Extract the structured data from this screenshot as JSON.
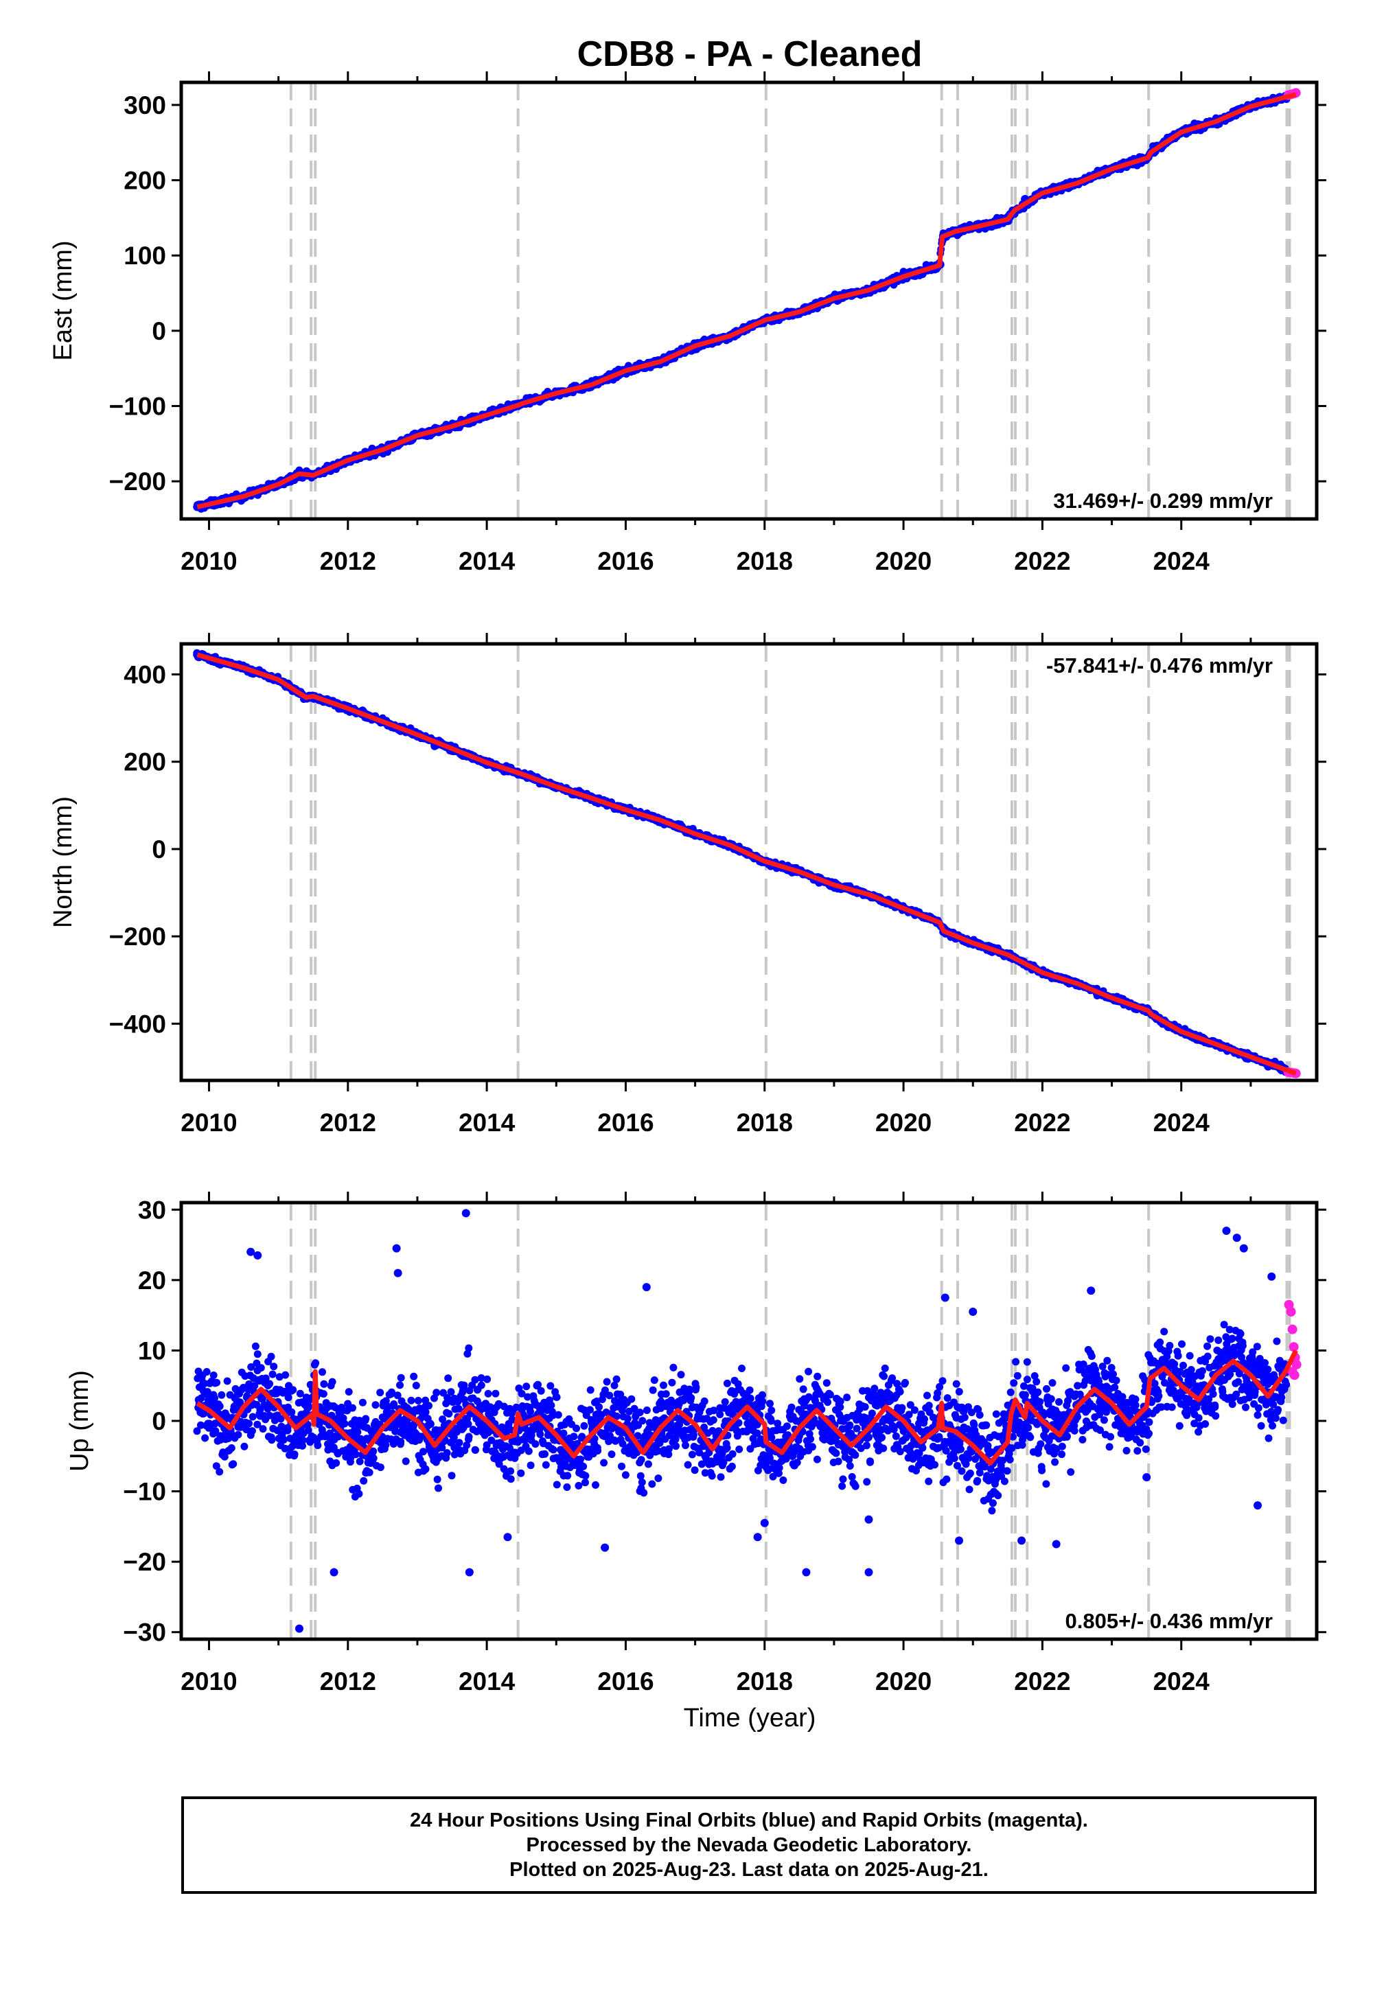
{
  "title": "CDB8  - PA - Cleaned",
  "x_tick_labels": [
    "2010",
    "2012",
    "2014",
    "2016",
    "2018",
    "2020",
    "2022",
    "2024"
  ],
  "xlabel": "Time (year)",
  "colors": {
    "final": "#0000ff",
    "rapid": "#ff22dd",
    "model": "#ff1a1a",
    "steps": "#c8c8c8"
  },
  "footer": {
    "line1": "24 Hour Positions Using Final Orbits (blue) and Rapid Orbits (magenta).",
    "line2": "Processed by the Nevada Geodetic Laboratory.",
    "line3": "Plotted on 2025-Aug-23. Last data on 2025-Aug-21."
  },
  "chart_data": [
    {
      "type": "scatter",
      "panel": "east",
      "ylabel": "East (mm)",
      "xlim": [
        2009.6,
        2025.95
      ],
      "ylim": [
        -250,
        330
      ],
      "y_ticks": [
        -200,
        -100,
        0,
        100,
        200,
        300
      ],
      "y_tick_labels": [
        "−200",
        "−100",
        "0",
        "100",
        "200",
        "300"
      ],
      "rate_label": "31.469+/- 0.299 mm/yr",
      "rate_position": "bottom-right",
      "step_lines": [
        2011.18,
        2011.47,
        2011.53,
        2014.45,
        2018.02,
        2020.55,
        2020.78,
        2021.56,
        2021.61,
        2021.78,
        2023.53,
        2025.52,
        2025.56
      ],
      "series": [
        {
          "name": "Final Orbits",
          "style": "points",
          "color": "#0000ff",
          "x": [
            2009.83,
            2010.0,
            2010.25,
            2010.5,
            2010.75,
            2011.0,
            2011.25,
            2011.5,
            2011.75,
            2012.0,
            2012.25,
            2012.5,
            2012.75,
            2013.0,
            2013.25,
            2013.5,
            2013.75,
            2014.0,
            2014.25,
            2014.45,
            2014.75,
            2015.0,
            2015.25,
            2015.5,
            2015.75,
            2016.0,
            2016.25,
            2016.5,
            2016.75,
            2017.0,
            2017.25,
            2017.5,
            2017.75,
            2018.0,
            2018.25,
            2018.5,
            2018.75,
            2019.0,
            2019.25,
            2019.5,
            2019.75,
            2020.0,
            2020.25,
            2020.53,
            2020.56,
            2020.75,
            2021.0,
            2021.25,
            2021.5,
            2021.6,
            2021.75,
            2022.0,
            2022.25,
            2022.5,
            2022.75,
            2023.0,
            2023.25,
            2023.5,
            2023.55,
            2023.75,
            2024.0,
            2024.25,
            2024.5,
            2024.75,
            2025.0,
            2025.25,
            2025.5
          ],
          "y": [
            -234,
            -230,
            -226,
            -220,
            -212,
            -203,
            -193,
            -191,
            -186,
            -171,
            -161,
            -158,
            -150,
            -138,
            -130,
            -125,
            -123,
            -112,
            -105,
            -100,
            -92,
            -83,
            -76,
            -72,
            -62,
            -52,
            -46,
            -40,
            -31,
            -20,
            -12,
            -6,
            5,
            15,
            20,
            25,
            33,
            43,
            51,
            55,
            61,
            71,
            80,
            88,
            120,
            132,
            137,
            143,
            149,
            158,
            175,
            184,
            192,
            197,
            205,
            214,
            222,
            228,
            235,
            250,
            264,
            271,
            279,
            289,
            298,
            306,
            312
          ]
        },
        {
          "name": "Rapid Orbits",
          "style": "points",
          "color": "#ff22dd",
          "x": [
            2025.54,
            2025.58,
            2025.62,
            2025.65
          ],
          "y": [
            313,
            314,
            315,
            316
          ]
        },
        {
          "name": "Model",
          "style": "line",
          "color": "#ff1a1a",
          "x": [
            2009.83,
            2010.5,
            2011.0,
            2011.3,
            2011.5,
            2012.0,
            2012.5,
            2013.0,
            2013.5,
            2014.0,
            2014.45,
            2014.5,
            2015.0,
            2015.5,
            2016.0,
            2016.5,
            2017.0,
            2017.5,
            2018.0,
            2018.5,
            2019.0,
            2019.5,
            2020.0,
            2020.52,
            2020.56,
            2020.75,
            2021.0,
            2021.5,
            2021.6,
            2022.0,
            2022.5,
            2023.0,
            2023.52,
            2023.56,
            2024.0,
            2024.5,
            2025.0,
            2025.65
          ],
          "y": [
            -234,
            -220,
            -204,
            -190,
            -192,
            -172,
            -158,
            -139,
            -127,
            -112,
            -99,
            -97,
            -83,
            -72,
            -53,
            -41,
            -20,
            -7,
            14,
            25,
            43,
            54,
            72,
            87,
            125,
            132,
            137,
            148,
            160,
            183,
            196,
            215,
            230,
            237,
            264,
            278,
            298,
            314
          ]
        }
      ]
    },
    {
      "type": "scatter",
      "panel": "north",
      "ylabel": "North (mm)",
      "xlim": [
        2009.6,
        2025.95
      ],
      "ylim": [
        -530,
        470
      ],
      "y_ticks": [
        -400,
        -200,
        0,
        200,
        400
      ],
      "y_tick_labels": [
        "−400",
        "−200",
        "0",
        "200",
        "400"
      ],
      "rate_label": "-57.841+/- 0.476 mm/yr",
      "rate_position": "top-right",
      "step_lines": [
        2011.18,
        2011.47,
        2011.53,
        2014.45,
        2018.02,
        2020.55,
        2020.78,
        2021.56,
        2021.61,
        2021.78,
        2023.53,
        2025.52,
        2025.56
      ],
      "series": [
        {
          "name": "Final Orbits",
          "style": "points",
          "color": "#0000ff",
          "x": [
            2009.83,
            2010.0,
            2010.25,
            2010.5,
            2010.75,
            2011.0,
            2011.25,
            2011.5,
            2011.75,
            2012.0,
            2012.25,
            2012.5,
            2012.75,
            2013.0,
            2013.25,
            2013.5,
            2013.75,
            2014.0,
            2014.25,
            2014.5,
            2014.75,
            2015.0,
            2015.25,
            2015.5,
            2015.75,
            2016.0,
            2016.25,
            2016.5,
            2016.75,
            2017.0,
            2017.25,
            2017.5,
            2017.75,
            2018.0,
            2018.25,
            2018.5,
            2018.75,
            2019.0,
            2019.25,
            2019.5,
            2019.75,
            2020.0,
            2020.25,
            2020.5,
            2020.6,
            2020.75,
            2021.0,
            2021.25,
            2021.5,
            2021.75,
            2022.0,
            2022.25,
            2022.5,
            2022.75,
            2023.0,
            2023.25,
            2023.5,
            2023.75,
            2024.0,
            2024.25,
            2024.5,
            2024.75,
            2025.0,
            2025.25,
            2025.5
          ],
          "y": [
            445,
            437,
            425,
            415,
            405,
            385,
            365,
            350,
            337,
            320,
            302,
            291,
            280,
            258,
            236,
            225,
            212,
            193,
            178,
            170,
            158,
            140,
            125,
            118,
            105,
            90,
            78,
            67,
            52,
            35,
            18,
            8,
            -5,
            -30,
            -43,
            -52,
            -65,
            -83,
            -95,
            -105,
            -118,
            -137,
            -152,
            -167,
            -190,
            -205,
            -218,
            -233,
            -245,
            -265,
            -285,
            -298,
            -310,
            -322,
            -342,
            -360,
            -372,
            -400,
            -420,
            -436,
            -450,
            -460,
            -478,
            -498,
            -510
          ]
        },
        {
          "name": "Rapid Orbits",
          "style": "points",
          "color": "#ff22dd",
          "x": [
            2025.54,
            2025.58,
            2025.62,
            2025.65
          ],
          "y": [
            -511,
            -512,
            -513,
            -514
          ]
        },
        {
          "name": "Model",
          "style": "line",
          "color": "#ff1a1a",
          "x": [
            2009.83,
            2010.5,
            2011.0,
            2011.4,
            2011.5,
            2012.0,
            2012.5,
            2013.0,
            2013.5,
            2014.0,
            2014.5,
            2015.0,
            2015.5,
            2016.0,
            2016.5,
            2017.0,
            2017.5,
            2018.0,
            2018.5,
            2019.0,
            2019.5,
            2020.0,
            2020.52,
            2020.58,
            2021.0,
            2021.5,
            2022.0,
            2022.5,
            2023.0,
            2023.52,
            2023.58,
            2024.0,
            2024.5,
            2025.0,
            2025.65
          ],
          "y": [
            445,
            415,
            388,
            347,
            350,
            322,
            292,
            262,
            230,
            198,
            172,
            143,
            117,
            90,
            66,
            35,
            9,
            -28,
            -52,
            -82,
            -104,
            -136,
            -168,
            -188,
            -215,
            -242,
            -283,
            -308,
            -341,
            -370,
            -380,
            -418,
            -447,
            -476,
            -514
          ]
        }
      ]
    },
    {
      "type": "scatter",
      "panel": "up",
      "ylabel": "Up (mm)",
      "xlim": [
        2009.6,
        2025.95
      ],
      "ylim": [
        -31,
        31
      ],
      "y_ticks": [
        -30,
        -20,
        -10,
        0,
        10,
        20,
        30
      ],
      "y_tick_labels": [
        "−30",
        "−20",
        "−10",
        "0",
        "10",
        "20",
        "30"
      ],
      "rate_label": "0.805+/- 0.436 mm/yr",
      "rate_position": "bottom-right",
      "step_lines": [
        2011.18,
        2011.47,
        2011.53,
        2014.45,
        2018.02,
        2020.55,
        2020.78,
        2021.56,
        2021.61,
        2021.78,
        2023.53,
        2025.52,
        2025.56
      ],
      "series": [
        {
          "name": "Final Orbits (outliers)",
          "style": "points",
          "color": "#0000ff",
          "x": [
            2010.6,
            2010.7,
            2011.3,
            2011.8,
            2012.7,
            2012.72,
            2013.7,
            2013.75,
            2014.3,
            2015.7,
            2016.3,
            2017.9,
            2018.0,
            2018.6,
            2019.5,
            2019.5,
            2020.6,
            2020.8,
            2021.0,
            2021.7,
            2022.2,
            2022.7,
            2023.5,
            2024.65,
            2024.8,
            2024.9,
            2025.1,
            2025.3
          ],
          "y": [
            24,
            23.5,
            -29.5,
            -21.5,
            24.5,
            21,
            29.5,
            -21.5,
            -16.5,
            -18,
            19,
            -16.5,
            -14.5,
            -21.5,
            -21.5,
            -14,
            17.5,
            -17,
            15.5,
            -17,
            -17.5,
            18.5,
            -8,
            27,
            26,
            24.5,
            -12,
            20.5
          ]
        },
        {
          "name": "Rapid Orbits",
          "style": "points",
          "color": "#ff22dd",
          "x": [
            2025.55,
            2025.58,
            2025.6,
            2025.62,
            2025.64,
            2025.66,
            2025.6,
            2025.63
          ],
          "y": [
            16.5,
            15.5,
            13,
            10.5,
            9,
            8,
            7,
            6.5
          ]
        },
        {
          "name": "Model",
          "style": "line",
          "color": "#ff1a1a",
          "x": [
            2009.83,
            2010.0,
            2010.3,
            2010.5,
            2010.75,
            2011.0,
            2011.2,
            2011.25,
            2011.5,
            2011.51,
            2011.53,
            2011.55,
            2011.75,
            2012.0,
            2012.25,
            2012.5,
            2012.75,
            2013.0,
            2013.25,
            2013.5,
            2013.75,
            2014.0,
            2014.25,
            2014.4,
            2014.45,
            2014.5,
            2014.75,
            2015.0,
            2015.25,
            2015.5,
            2015.75,
            2016.0,
            2016.25,
            2016.5,
            2016.75,
            2017.0,
            2017.25,
            2017.5,
            2017.75,
            2018.0,
            2018.02,
            2018.25,
            2018.5,
            2018.75,
            2019.0,
            2019.25,
            2019.5,
            2019.75,
            2020.0,
            2020.25,
            2020.5,
            2020.55,
            2020.56,
            2020.75,
            2021.0,
            2021.25,
            2021.5,
            2021.55,
            2021.61,
            2021.75,
            2021.78,
            2022.0,
            2022.25,
            2022.5,
            2022.75,
            2023.0,
            2023.25,
            2023.5,
            2023.55,
            2023.75,
            2024.0,
            2024.25,
            2024.5,
            2024.75,
            2025.0,
            2025.25,
            2025.5,
            2025.65
          ],
          "y": [
            2.5,
            1.5,
            -1,
            2,
            4.5,
            2,
            -0.5,
            -1,
            1,
            -0.5,
            7,
            1,
            0,
            -2.5,
            -4.5,
            -1,
            1.5,
            0,
            -3.5,
            -0.5,
            2,
            0,
            -2.5,
            -2,
            1,
            -0.5,
            0.5,
            -2,
            -5,
            -2,
            0.5,
            -1,
            -4.5,
            -1,
            1.5,
            -0.5,
            -4,
            -0.5,
            2,
            -0.5,
            -3,
            -4.5,
            -1,
            1.5,
            -1,
            -3.5,
            -1,
            2,
            0,
            -3,
            -1,
            2.5,
            -1,
            -1.5,
            -3.5,
            -6,
            -3,
            1,
            3,
            0.5,
            2.5,
            0,
            -2,
            2,
            4.5,
            2.5,
            -0.5,
            2,
            6,
            7.5,
            5,
            3,
            6.5,
            8.5,
            6.5,
            3.5,
            7,
            10
          ]
        }
      ]
    }
  ]
}
